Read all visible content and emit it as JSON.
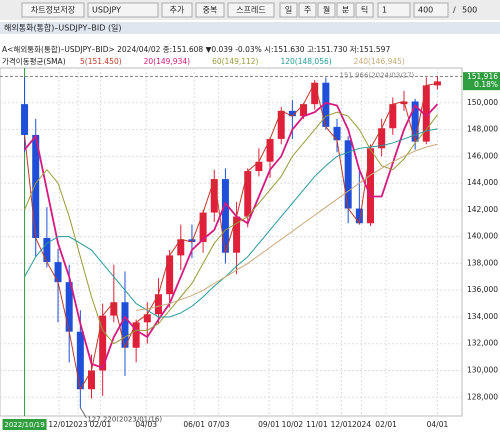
{
  "toolbar": {
    "save": "차트정보저장",
    "symbol": "USDJPY",
    "add": "추가",
    "overlap": "중복",
    "spread": "스프레드",
    "periods": [
      "일",
      "주",
      "월",
      "분",
      "틱"
    ],
    "interval": "1",
    "count": "400",
    "sep": "/",
    "max": "500"
  },
  "window_title": "해외통화(통합)–USDJPY–BID (일)",
  "chart_data": {
    "type": "candlestick",
    "info": "A<해외통화(통합)–USDJPY–BID> 2024/04/02 종:151.608 ▼0.039 -0.03% 시:151.630 고:151.730 저:151.597",
    "indicator": "가격이동평균(SMA)",
    "x": [
      0,
      10,
      20,
      30,
      40,
      50,
      60,
      70,
      80,
      90,
      100,
      110,
      120,
      130,
      140,
      150,
      160,
      170,
      180,
      190,
      200,
      210,
      220,
      230,
      240,
      250,
      260,
      270,
      280,
      290,
      300,
      310,
      320,
      330,
      340,
      350,
      360,
      370
    ],
    "open": [
      149.9,
      147.6,
      139.9,
      138.1,
      136.6,
      132.9,
      128.6,
      130.0,
      134.1,
      135.1,
      131.7,
      133.6,
      134.2,
      135.7,
      138.6,
      139.8,
      139.6,
      141.8,
      144.3,
      138.8,
      141.5,
      144.9,
      145.6,
      147.3,
      149.4,
      149.0,
      149.9,
      151.5,
      148.2,
      147.2,
      142.1,
      141.0,
      146.6,
      148.1,
      149.9,
      150.1,
      147.1,
      151.3
    ],
    "high": [
      151.9,
      148.8,
      142.2,
      139.1,
      137.9,
      134.5,
      131.2,
      135.0,
      137.9,
      137.4,
      133.8,
      135.1,
      136.9,
      139.0,
      140.9,
      140.9,
      142.0,
      145.0,
      145.1,
      142.6,
      145.1,
      146.6,
      147.4,
      149.7,
      150.2,
      150.0,
      151.7,
      151.9,
      148.8,
      147.5,
      144.9,
      146.9,
      148.8,
      150.4,
      150.9,
      150.3,
      151.9,
      152.0
    ],
    "low": [
      146.3,
      138.5,
      137.7,
      133.6,
      130.6,
      127.2,
      127.9,
      128.1,
      133.6,
      129.6,
      130.6,
      132.0,
      133.5,
      134.7,
      137.5,
      138.4,
      138.8,
      141.1,
      138.0,
      137.2,
      140.7,
      144.5,
      144.4,
      146.9,
      147.3,
      148.8,
      149.5,
      148.0,
      146.3,
      141.0,
      140.9,
      140.8,
      146.0,
      147.6,
      149.4,
      146.5,
      146.9,
      151.0
    ],
    "close": [
      147.6,
      139.9,
      138.1,
      136.6,
      132.9,
      128.6,
      130.0,
      134.1,
      135.1,
      131.7,
      133.6,
      134.2,
      135.7,
      138.6,
      139.8,
      139.6,
      141.8,
      144.3,
      138.8,
      141.5,
      144.9,
      145.6,
      147.3,
      149.4,
      149.0,
      149.9,
      151.5,
      148.2,
      147.2,
      142.1,
      141.0,
      146.6,
      148.1,
      149.9,
      150.1,
      147.1,
      151.3,
      151.6
    ],
    "up_color": "#e0203a",
    "down_color": "#1f4fd8",
    "series": [
      {
        "name": "5(151.450)",
        "color": "#c0392b",
        "values": [
          147.6,
          139.9,
          138.1,
          136.6,
          132.9,
          128.6,
          130.0,
          134.1,
          135.1,
          131.7,
          133.6,
          134.2,
          135.7,
          138.6,
          139.8,
          139.6,
          141.8,
          144.3,
          138.8,
          141.5,
          144.9,
          145.6,
          147.3,
          149.4,
          149.0,
          149.9,
          151.5,
          148.2,
          147.2,
          142.1,
          141.0,
          146.6,
          148.1,
          149.9,
          150.1,
          147.1,
          151.3,
          151.45
        ]
      },
      {
        "name": "20(149,934)",
        "color": "#d6197f",
        "values": [
          146.5,
          147.5,
          143.5,
          139.5,
          137.0,
          133.5,
          130.5,
          130.2,
          132.5,
          134.0,
          133.0,
          132.5,
          133.8,
          135.0,
          137.0,
          139.0,
          139.8,
          140.5,
          142.5,
          141.5,
          141.0,
          143.0,
          145.0,
          146.0,
          148.0,
          149.0,
          149.3,
          150.0,
          149.8,
          148.0,
          145.0,
          143.0,
          143.0,
          145.5,
          148.0,
          149.8,
          149.0,
          149.9
        ]
      },
      {
        "name": "60(149,112)",
        "color": "#9a9a3a",
        "values": [
          142,
          144,
          145,
          144,
          141.5,
          138.5,
          135.5,
          133,
          132,
          132.5,
          133,
          133,
          133.5,
          134.5,
          135.5,
          136.5,
          138,
          139.5,
          140.5,
          141,
          141.5,
          142.5,
          143.5,
          144.5,
          146,
          147,
          148,
          149,
          149.3,
          149,
          148,
          146.5,
          145.3,
          145,
          145.8,
          147,
          148,
          149.1
        ]
      },
      {
        "name": "120(148,056)",
        "color": "#2a9a9a",
        "values": [
          137,
          138.5,
          139.5,
          140,
          140,
          139.5,
          139,
          138,
          137,
          136,
          135,
          134.5,
          134,
          134,
          134.3,
          134.8,
          135.5,
          136.3,
          137,
          137.8,
          138.5,
          139.5,
          140.5,
          141.5,
          142.5,
          143.5,
          144.5,
          145.3,
          146,
          146.3,
          146.6,
          146.7,
          146.8,
          147,
          147.3,
          147.6,
          147.9,
          148.05
        ]
      },
      {
        "name": "240(146,945)",
        "color": "#c8a878",
        "values": [
          null,
          null,
          null,
          null,
          null,
          null,
          null,
          null,
          null,
          null,
          134.5,
          134.6,
          134.8,
          135,
          135.3,
          135.6,
          136,
          136.5,
          137,
          137.5,
          138,
          138.6,
          139.2,
          139.8,
          140.4,
          141,
          141.6,
          142.2,
          142.8,
          143.4,
          144,
          144.6,
          145.1,
          145.6,
          146,
          146.4,
          146.7,
          146.9
        ]
      }
    ],
    "xlim": [
      -22,
      392
    ],
    "ylim": [
      126.6,
      152.6
    ],
    "yticks": [
      {
        "value": 128,
        "label": "128,000"
      },
      {
        "value": 130,
        "label": "130,000"
      },
      {
        "value": 132,
        "label": "132,000"
      },
      {
        "value": 134,
        "label": "134,000"
      },
      {
        "value": 136,
        "label": "136,000"
      },
      {
        "value": 138,
        "label": "138,000"
      },
      {
        "value": 140,
        "label": "140,000"
      },
      {
        "value": 142,
        "label": "142,000"
      },
      {
        "value": 144,
        "label": "144,000"
      },
      {
        "value": 146,
        "label": "146,000"
      },
      {
        "value": 148,
        "label": "148,000"
      },
      {
        "value": 150,
        "label": "150,000"
      }
    ],
    "xticks": [
      {
        "value": 31,
        "label": "12/01"
      },
      {
        "value": 48,
        "label": "2023"
      },
      {
        "value": 68,
        "label": "02/01"
      },
      {
        "value": 109,
        "label": "04/03"
      },
      {
        "value": 152,
        "label": "06/01"
      },
      {
        "value": 174,
        "label": "07/03"
      },
      {
        "value": 219,
        "label": "09/01"
      },
      {
        "value": 240,
        "label": "10/02"
      },
      {
        "value": 262,
        "label": "11/01"
      },
      {
        "value": 284,
        "label": "12/01"
      },
      {
        "value": 302,
        "label": "2024"
      },
      {
        "value": 324,
        "label": "02/01"
      },
      {
        "value": 370,
        "label": "04/01"
      }
    ],
    "crosshair": {
      "value": 0,
      "label": "2022/10/19"
    },
    "high_mark": {
      "value": 151.966,
      "x": 360,
      "label": "151.966(2024/03/27)"
    },
    "low_mark": {
      "value": 127.22,
      "x": 50,
      "label": "127.220(2023/01/16)"
    },
    "last_price": {
      "value": 151.916,
      "label": "151,916",
      "change": "0.18%"
    }
  }
}
